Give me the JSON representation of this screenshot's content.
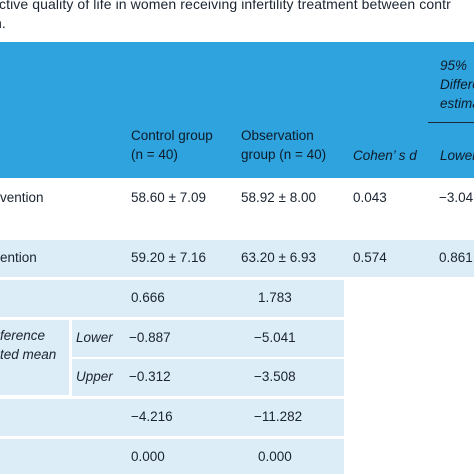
{
  "caption": {
    "line1": "ctive quality of life in women receiving infertility treatment between contr",
    "line2": "n."
  },
  "header": {
    "control": "Control group",
    "control_n": "(n = 40)",
    "observation": "Observation",
    "observation_n": "group (n = 40)",
    "cohen": "Cohen’ s d",
    "ci_pct": "95%",
    "ci_diff": "Differe",
    "ci_est": "estima",
    "lower": "Lower"
  },
  "rows": {
    "before": {
      "label": "vention",
      "control": "58.60 ± 7.09",
      "observation": "58.92 ± 8.00",
      "d": "0.043",
      "lower": "−3.04"
    },
    "after": {
      "label": "ention",
      "control": "59.20 ± 7.16",
      "observation": "63.20 ± 6.93",
      "d": "0.574",
      "lower": "0.861"
    },
    "r3": {
      "control": "0.666",
      "observation": "1.783"
    },
    "r4": {
      "label1": "ference",
      "label2": "ted mean",
      "sub": "Lower",
      "control": "−0.887",
      "observation": "−5.041"
    },
    "r5": {
      "sub": "Upper",
      "control": "−0.312",
      "observation": "−3.508"
    },
    "r6": {
      "control": "−4.216",
      "observation": "−11.282"
    },
    "r7": {
      "control": "0.000",
      "observation": "0.000"
    }
  }
}
